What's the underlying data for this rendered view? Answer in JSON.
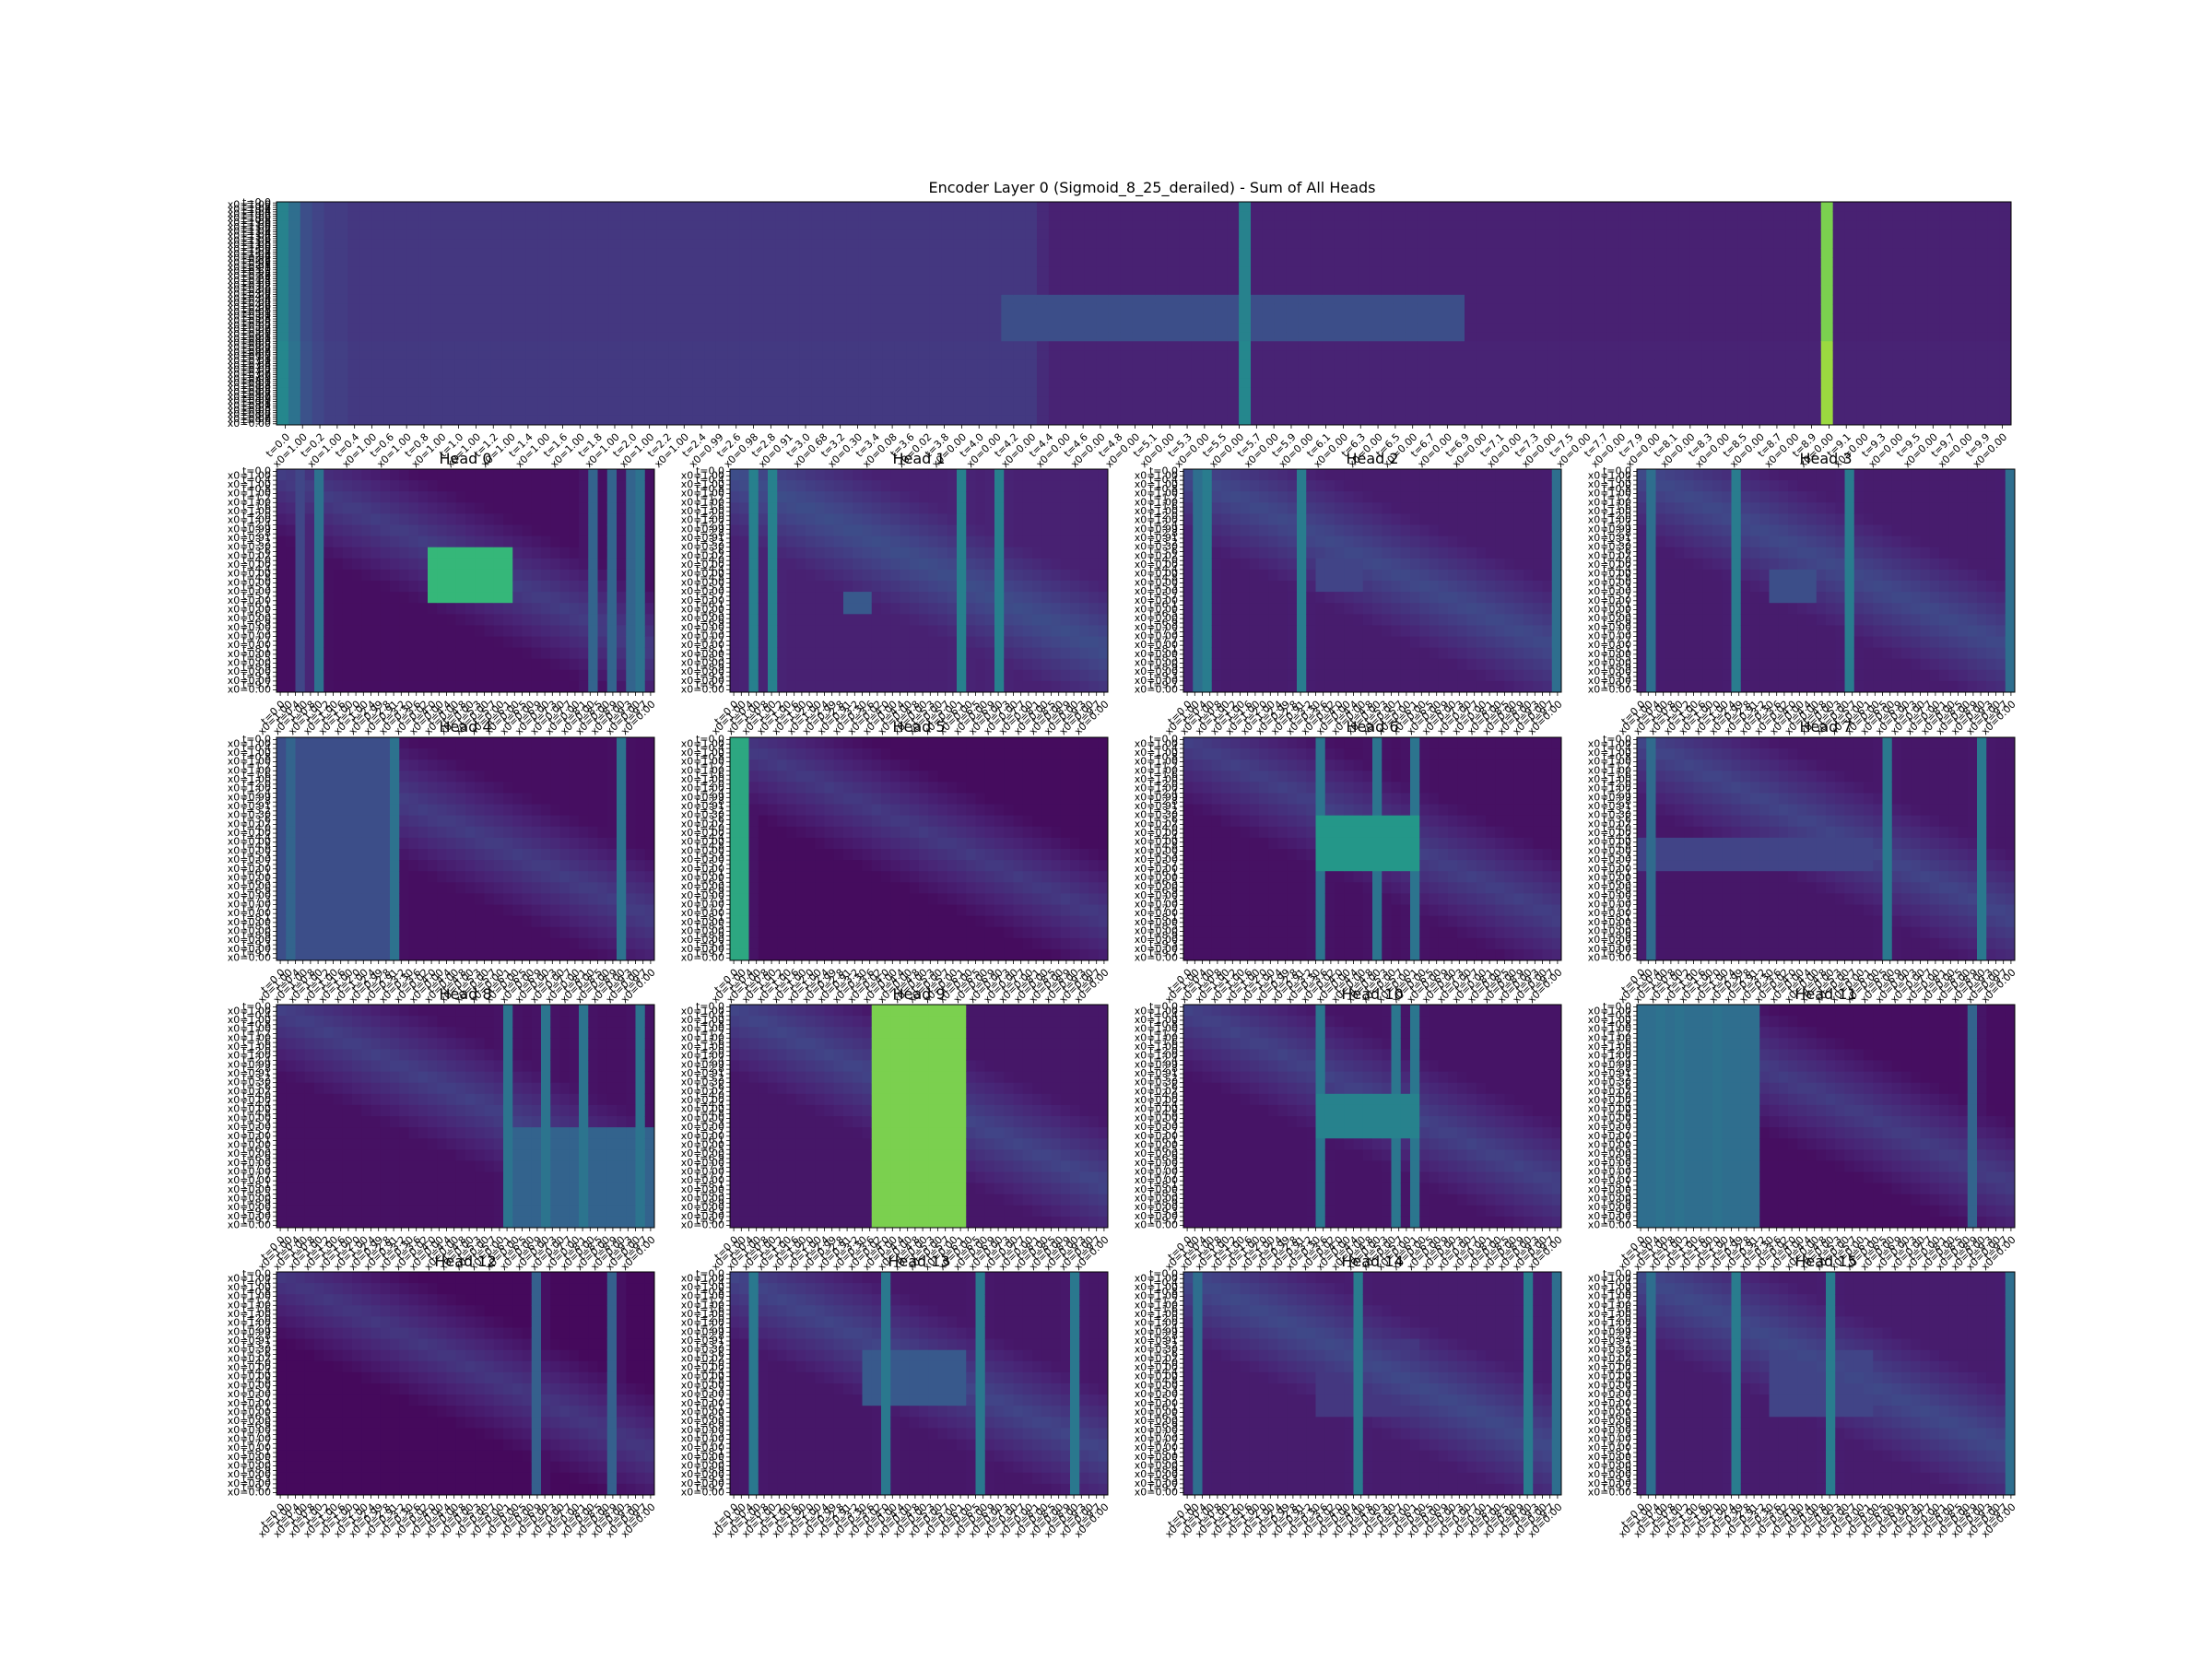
{
  "chart_data": {
    "type": "heatmap",
    "colormap": "viridis",
    "title": "Encoder Layer 0 (Sigmoid_8_25_derailed) - Sum of All Heads",
    "main": {
      "title": "Encoder Layer 0 (Sigmoid_8_25_derailed) - Sum of All Heads",
      "x_tick_labels": [
        "t=0.0",
        "x0=1.00",
        "t=0.2",
        "x0=1.00",
        "t=0.4",
        "x0=1.00",
        "t=0.6",
        "x0=1.00",
        "t=0.8",
        "x0=1.00",
        "t=1.0",
        "x0=1.00",
        "t=1.2",
        "x0=1.00",
        "t=1.4",
        "x0=1.00",
        "t=1.6",
        "x0=1.00",
        "t=1.8",
        "x0=1.00",
        "t=2.0",
        "x0=1.00",
        "t=2.2",
        "x0=1.00",
        "t=2.4",
        "x0=0.99",
        "t=2.6",
        "x0=0.98",
        "t=2.8",
        "x0=0.91",
        "t=3.0",
        "x0=0.68",
        "t=3.2",
        "x0=0.30",
        "t=3.4",
        "x0=0.08",
        "t=3.6",
        "x0=0.02",
        "t=3.8",
        "x0=0.00",
        "t=4.0",
        "x0=0.00",
        "t=4.2",
        "x0=0.00",
        "t=4.4",
        "x0=0.00",
        "t=4.6",
        "x0=0.00",
        "t=4.8",
        "x0=0.00",
        "t=5.1",
        "x0=0.00",
        "t=5.3",
        "x0=0.00",
        "t=5.5",
        "x0=0.00",
        "t=5.7",
        "x0=0.00",
        "t=5.9",
        "x0=0.00",
        "t=6.1",
        "x0=0.00",
        "t=6.3",
        "x0=0.00",
        "t=6.5",
        "x0=0.00",
        "t=6.7",
        "x0=0.00",
        "t=6.9",
        "x0=0.00",
        "t=7.1",
        "x0=0.00",
        "t=7.3",
        "x0=0.00",
        "t=7.5",
        "x0=0.00",
        "t=7.7",
        "x0=0.00",
        "t=7.9",
        "x0=0.00",
        "t=8.1",
        "x0=0.00",
        "t=8.3",
        "x0=0.00",
        "t=8.5",
        "x0=0.00",
        "t=8.7",
        "x0=0.00",
        "t=8.9",
        "x0=0.00",
        "t=9.1",
        "x0=0.00",
        "t=9.3",
        "x0=0.00",
        "t=9.5",
        "x0=0.00",
        "t=9.7",
        "x0=0.00",
        "t=9.9",
        "x0=0.00"
      ],
      "y_tick_labels": [
        "t=0.0",
        "x0=1.00",
        "t=0.2",
        "x0=1.00",
        "t=0.4",
        "x0=1.00",
        "t=0.6",
        "x0=1.00",
        "t=0.8",
        "x0=1.00",
        "t=1.0",
        "x0=1.00",
        "t=1.2",
        "x0=1.00",
        "t=1.4",
        "x0=1.00",
        "t=1.6",
        "x0=1.00",
        "t=1.8",
        "x0=1.00",
        "t=2.0",
        "x0=1.00",
        "t=2.2",
        "x0=1.00",
        "t=2.4",
        "x0=0.99",
        "t=2.6",
        "x0=0.98",
        "t=2.8",
        "x0=0.91",
        "t=3.0",
        "x0=0.68",
        "t=3.2",
        "x0=0.30",
        "t=3.4",
        "x0=0.08",
        "t=3.6",
        "x0=0.02",
        "t=3.8",
        "x0=0.00",
        "t=4.0",
        "x0=0.00",
        "t=4.2",
        "x0=0.00",
        "t=4.4",
        "x0=0.00",
        "t=4.6",
        "x0=0.00",
        "t=4.8",
        "x0=0.00",
        "t=5.1",
        "x0=0.00",
        "t=5.3",
        "x0=0.00",
        "t=5.5",
        "x0=0.00",
        "t=5.7",
        "x0=0.00",
        "t=5.9",
        "x0=0.00",
        "t=6.1",
        "x0=0.00",
        "t=6.3",
        "x0=0.00",
        "t=6.5",
        "x0=0.00",
        "t=6.7",
        "x0=0.00",
        "t=6.9",
        "x0=0.00",
        "t=7.1",
        "x0=0.00",
        "t=7.3",
        "x0=0.00",
        "t=7.5",
        "x0=0.00",
        "t=7.7",
        "x0=0.00",
        "t=7.9",
        "x0=0.00",
        "t=8.1",
        "x0=0.00",
        "t=8.3",
        "x0=0.00",
        "t=8.5",
        "x0=0.00",
        "t=8.7",
        "x0=0.00",
        "t=8.9",
        "x0=0.00",
        "t=9.1",
        "x0=0.00",
        "t=9.3",
        "x0=0.00",
        "t=9.5",
        "x0=0.00",
        "t=9.7",
        "x0=0.00",
        "t=9.9",
        "x0=0.00"
      ],
      "column_intensity": [
        0.55,
        0.45,
        0.3,
        0.25,
        0.22,
        0.22,
        0.2,
        0.2,
        0.2,
        0.2,
        0.2,
        0.2,
        0.2,
        0.2,
        0.2,
        0.2,
        0.2,
        0.2,
        0.2,
        0.2,
        0.2,
        0.2,
        0.2,
        0.2,
        0.2,
        0.2,
        0.2,
        0.2,
        0.2,
        0.2,
        0.2,
        0.2,
        0.2,
        0.2,
        0.2,
        0.2,
        0.2,
        0.2,
        0.2,
        0.2,
        0.2,
        0.2,
        0.2,
        0.2,
        0.2,
        0.2,
        0.2,
        0.2,
        0.2,
        0.2,
        0.2,
        0.2,
        0.2,
        0.2,
        0.2,
        0.2,
        0.2,
        0.2,
        0.2,
        0.2,
        0.2,
        0.2,
        0.2,
        0.2,
        0.15,
        0.12,
        0.12,
        0.12,
        0.12,
        0.12,
        0.12,
        0.12,
        0.12,
        0.12,
        0.12,
        0.12,
        0.12,
        0.12,
        0.12,
        0.12,
        0.12,
        0.55,
        0.12,
        0.12,
        0.12,
        0.12,
        0.12,
        0.12,
        0.12,
        0.12,
        0.12,
        0.12,
        0.12,
        0.12,
        0.12,
        0.12,
        0.12,
        0.12,
        0.12,
        0.12,
        0.12,
        0.12,
        0.12,
        0.12,
        0.12,
        0.12,
        0.12,
        0.12,
        0.12,
        0.12,
        0.12,
        0.12,
        0.12,
        0.12,
        0.12,
        0.12,
        0.12,
        0.12,
        0.12,
        0.12,
        0.12,
        0.12,
        0.12,
        0.12,
        0.12,
        0.12,
        0.12,
        0.12,
        0.12,
        0.12,
        0.85,
        0.12,
        0.12,
        0.12,
        0.12,
        0.12,
        0.12,
        0.12,
        0.12,
        0.12,
        0.12,
        0.12,
        0.12,
        0.12,
        0.12,
        0.12
      ]
    },
    "heads": [
      {
        "title": "Head 0",
        "col_peaks": [
          0.1,
          0.06,
          0.82,
          0.88,
          0.92,
          0.95
        ],
        "band_rows": [
          0.35,
          0.55
        ],
        "band_cols": [
          0.4,
          0.6
        ],
        "band_level": 0.75,
        "bg": 0.05
      },
      {
        "title": "Head 1",
        "col_peaks": [
          0.05,
          0.1,
          0.6,
          0.7
        ],
        "band_rows": [
          0.55,
          0.6
        ],
        "band_cols": [
          0.3,
          0.35
        ],
        "band_level": 0.35,
        "bg": 0.12
      },
      {
        "title": "Head 2",
        "col_peaks": [
          0.05,
          0.02,
          0.3,
          0.98
        ],
        "band_rows": [
          0.4,
          0.5
        ],
        "band_cols": [
          0.35,
          0.45
        ],
        "band_level": 0.25,
        "bg": 0.1
      },
      {
        "title": "Head 3",
        "col_peaks": [
          0.02,
          0.25,
          0.55,
          0.98
        ],
        "band_rows": [
          0.45,
          0.55
        ],
        "band_cols": [
          0.35,
          0.45
        ],
        "band_level": 0.3,
        "bg": 0.1
      },
      {
        "title": "Head 4",
        "col_peaks": [
          0.03,
          0.06,
          0.3,
          0.9
        ],
        "band_rows": [
          0.0,
          1.0
        ],
        "band_cols": [
          0.0,
          0.3
        ],
        "band_level": 0.3,
        "bg": 0.05
      },
      {
        "title": "Head 5",
        "col_peaks": [
          0.02,
          0.03
        ],
        "band_rows": [
          0.0,
          1.0
        ],
        "band_cols": [
          0.0,
          0.04
        ],
        "band_level": 0.7,
        "bg": 0.04
      },
      {
        "title": "Head 6",
        "col_peaks": [
          0.35,
          0.5,
          0.6
        ],
        "band_rows": [
          0.35,
          0.55
        ],
        "band_cols": [
          0.35,
          0.6
        ],
        "band_level": 0.65,
        "bg": 0.06
      },
      {
        "title": "Head 7",
        "col_peaks": [
          0.02,
          0.65,
          0.9
        ],
        "band_rows": [
          0.45,
          0.55
        ],
        "band_cols": [
          0.0,
          0.6
        ],
        "band_level": 0.25,
        "bg": 0.08
      },
      {
        "title": "Head 8",
        "col_peaks": [
          0.6,
          0.7,
          0.8,
          0.95
        ],
        "band_rows": [
          0.55,
          1.0
        ],
        "band_cols": [
          0.6,
          1.0
        ],
        "band_level": 0.4,
        "bg": 0.06
      },
      {
        "title": "Head 9",
        "col_peaks": [
          0.4,
          0.45,
          0.5
        ],
        "band_rows": [
          0.0,
          1.0
        ],
        "band_cols": [
          0.37,
          0.6
        ],
        "band_level": 0.85,
        "bg": 0.08
      },
      {
        "title": "Head 10",
        "col_peaks": [
          0.35,
          0.55,
          0.6
        ],
        "band_rows": [
          0.4,
          0.55
        ],
        "band_cols": [
          0.35,
          0.6
        ],
        "band_level": 0.55,
        "bg": 0.07
      },
      {
        "title": "Head 11",
        "col_peaks": [
          0.05,
          0.1,
          0.2,
          0.88
        ],
        "band_rows": [
          0.0,
          1.0
        ],
        "band_cols": [
          0.0,
          0.3
        ],
        "band_level": 0.45,
        "bg": 0.05
      },
      {
        "title": "Head 12",
        "col_peaks": [
          0.68,
          0.88
        ],
        "band_rows": [
          0.0,
          1.0
        ],
        "band_cols": [
          0.68,
          0.69
        ],
        "band_level": 0.3,
        "bg": 0.03
      },
      {
        "title": "Head 13",
        "col_peaks": [
          0.05,
          0.4,
          0.65,
          0.9
        ],
        "band_rows": [
          0.35,
          0.55
        ],
        "band_cols": [
          0.35,
          0.6
        ],
        "band_level": 0.35,
        "bg": 0.08
      },
      {
        "title": "Head 14",
        "col_peaks": [
          0.02,
          0.45,
          0.9,
          0.98
        ],
        "band_rows": [
          0.3,
          0.6
        ],
        "band_cols": [
          0.35,
          0.6
        ],
        "band_level": 0.2,
        "bg": 0.1
      },
      {
        "title": "Head 15",
        "col_peaks": [
          0.02,
          0.25,
          0.5,
          0.98
        ],
        "band_rows": [
          0.35,
          0.6
        ],
        "band_cols": [
          0.35,
          0.6
        ],
        "band_level": 0.25,
        "bg": 0.1
      }
    ],
    "head_x_tick_labels": [
      "t=0.0",
      "x0=1.00",
      "t=0.4",
      "x0=1.00",
      "t=0.8",
      "x0=1.00",
      "t=1.2",
      "x0=1.00",
      "t=1.6",
      "x0=1.00",
      "t=2.0",
      "x0=1.00",
      "t=2.4",
      "x0=0.99",
      "t=2.8",
      "x0=0.91",
      "t=3.2",
      "x0=0.30",
      "t=3.6",
      "x0=0.02",
      "t=4.0",
      "x0=0.00",
      "t=4.4",
      "x0=0.00",
      "t=4.8",
      "x0=0.00",
      "t=5.3",
      "x0=0.00",
      "t=5.7",
      "x0=0.00",
      "t=6.1",
      "x0=0.00",
      "t=6.5",
      "x0=0.00",
      "t=6.9",
      "x0=0.00",
      "t=7.3",
      "x0=0.00",
      "t=7.7",
      "x0=0.00",
      "t=8.1",
      "x0=0.00",
      "t=8.5",
      "x0=0.00",
      "t=8.9",
      "x0=0.00",
      "t=9.3",
      "x0=0.00",
      "t=9.7",
      "x0=0.00"
    ],
    "head_y_tick_labels": [
      "t=0.0",
      "x0=1.00",
      "t=0.4",
      "x0=1.00",
      "t=0.8",
      "x0=1.00",
      "t=1.2",
      "x0=1.00",
      "t=1.6",
      "x0=1.00",
      "t=2.0",
      "x0=1.00",
      "t=2.4",
      "x0=0.99",
      "t=2.8",
      "x0=0.91",
      "t=3.2",
      "x0=0.30",
      "t=3.6",
      "x0=0.02",
      "t=4.0",
      "x0=0.00",
      "t=4.4",
      "x0=0.00",
      "t=4.8",
      "x0=0.00",
      "t=5.3",
      "x0=0.00",
      "t=5.7",
      "x0=0.00",
      "t=6.1",
      "x0=0.00",
      "t=6.5",
      "x0=0.00",
      "t=6.9",
      "x0=0.00",
      "t=7.3",
      "x0=0.00",
      "t=7.7",
      "x0=0.00",
      "t=8.1",
      "x0=0.00",
      "t=8.5",
      "x0=0.00",
      "t=8.9",
      "x0=0.00",
      "t=9.3",
      "x0=0.00",
      "t=9.7",
      "x0=0.00"
    ]
  }
}
